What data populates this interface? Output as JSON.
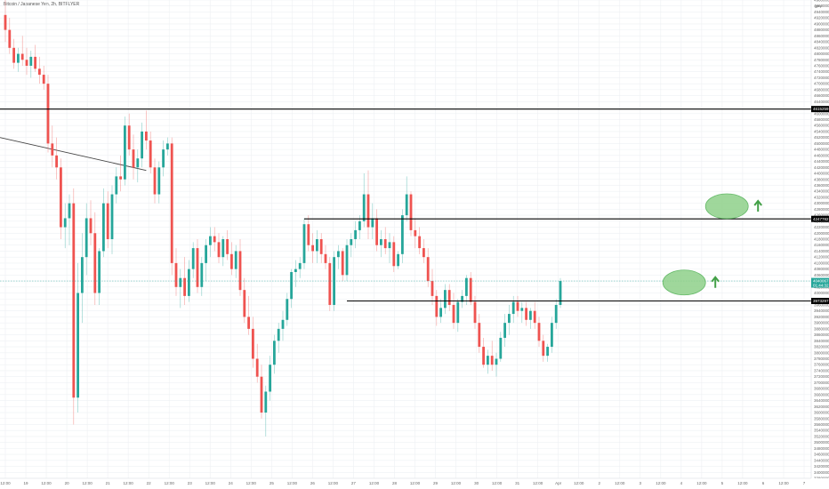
{
  "chart_data": {
    "type": "candlestick",
    "title": "Bitcoin / Japanese Yen, 2h, BITFLYER",
    "currency_label": "JPY",
    "colors": {
      "up": "#26a69a",
      "down": "#ef5350",
      "level_line": "#000000",
      "trendline": "#444444",
      "ellipse_fill": "#8fd18a",
      "ellipse_stroke": "#4caf50",
      "arrow": "#43a047",
      "current_price_tag": "#26a69a",
      "level_tag": "#000000",
      "grid": "#eef0f3"
    },
    "x_axis": {
      "labels": [
        "12:00",
        "19",
        "12:00",
        "20",
        "12:00",
        "21",
        "12:00",
        "22",
        "12:00",
        "23",
        "12:00",
        "24",
        "12:00",
        "25",
        "12:00",
        "26",
        "12:00",
        "27",
        "12:00",
        "28",
        "12:00",
        "29",
        "12:00",
        "30",
        "12:00",
        "31",
        "12:00",
        "Apr",
        "12:00",
        "2",
        "12:00",
        "3",
        "12:00",
        "4",
        "12:00",
        "5",
        "12:00",
        "6",
        "12:00",
        "7"
      ]
    },
    "y_axis": {
      "min": 3380000,
      "max": 4980000,
      "tick_step": 20000,
      "grid": true
    },
    "levels": [
      {
        "name": "upper-resistance",
        "value": 4615259,
        "label": "4615259",
        "start_bar": 0
      },
      {
        "name": "mid-resistance",
        "value": 4247782,
        "label": "4247782",
        "start_bar": 70
      },
      {
        "name": "support",
        "value": 3973297,
        "label": "3973297",
        "start_bar": 80
      }
    ],
    "current_price": {
      "value": 4040067,
      "label": "4040067",
      "countdown": "01:44:32"
    },
    "trendline": {
      "start_bar": 0,
      "start_value": 4520000,
      "end_bar": 33,
      "end_value": 4410000
    },
    "annotations": [
      {
        "name": "target-ellipse-upper",
        "bar": 169,
        "value": 4290000,
        "arrow": "up"
      },
      {
        "name": "target-ellipse-lower",
        "bar": 159,
        "value": 4035000,
        "arrow": "up"
      }
    ],
    "candles": [
      [
        4930000,
        4980000,
        4840000,
        4880000
      ],
      [
        4880000,
        4920000,
        4800000,
        4820000
      ],
      [
        4820000,
        4850000,
        4750000,
        4770000
      ],
      [
        4770000,
        4820000,
        4740000,
        4800000
      ],
      [
        4800000,
        4860000,
        4760000,
        4780000
      ],
      [
        4780000,
        4820000,
        4730000,
        4760000
      ],
      [
        4760000,
        4810000,
        4720000,
        4790000
      ],
      [
        4790000,
        4830000,
        4740000,
        4750000
      ],
      [
        4750000,
        4790000,
        4700000,
        4730000
      ],
      [
        4730000,
        4760000,
        4680000,
        4700000
      ],
      [
        4700000,
        4730000,
        4470000,
        4500000
      ],
      [
        4500000,
        4560000,
        4420000,
        4460000
      ],
      [
        4460000,
        4520000,
        4380000,
        4420000
      ],
      [
        4420000,
        4450000,
        4180000,
        4220000
      ],
      [
        4220000,
        4300000,
        4150000,
        4250000
      ],
      [
        4250000,
        4330000,
        4160000,
        4300000
      ],
      [
        4300000,
        4350000,
        3560000,
        3650000
      ],
      [
        3650000,
        4100000,
        3600000,
        4000000
      ],
      [
        4000000,
        4200000,
        3900000,
        4120000
      ],
      [
        4120000,
        4300000,
        4060000,
        4250000
      ],
      [
        4250000,
        4310000,
        4160000,
        4200000
      ],
      [
        4200000,
        4270000,
        3960000,
        4000000
      ],
      [
        4000000,
        4150000,
        3960000,
        4140000
      ],
      [
        4140000,
        4350000,
        4120000,
        4300000
      ],
      [
        4300000,
        4340000,
        4150000,
        4180000
      ],
      [
        4180000,
        4360000,
        4130000,
        4330000
      ],
      [
        4330000,
        4420000,
        4300000,
        4390000
      ],
      [
        4390000,
        4460000,
        4340000,
        4380000
      ],
      [
        4380000,
        4590000,
        4360000,
        4560000
      ],
      [
        4560000,
        4600000,
        4460000,
        4480000
      ],
      [
        4480000,
        4530000,
        4380000,
        4420000
      ],
      [
        4420000,
        4480000,
        4370000,
        4450000
      ],
      [
        4450000,
        4570000,
        4420000,
        4540000
      ],
      [
        4540000,
        4610000,
        4480000,
        4510000
      ],
      [
        4510000,
        4540000,
        4400000,
        4420000
      ],
      [
        4420000,
        4450000,
        4300000,
        4330000
      ],
      [
        4330000,
        4440000,
        4300000,
        4420000
      ],
      [
        4420000,
        4510000,
        4390000,
        4480000
      ],
      [
        4480000,
        4520000,
        4460000,
        4500000
      ],
      [
        4500000,
        4520000,
        4060000,
        4100000
      ],
      [
        4100000,
        4150000,
        3990000,
        4020000
      ],
      [
        4020000,
        4080000,
        3950000,
        4050000
      ],
      [
        4050000,
        4120000,
        3960000,
        3990000
      ],
      [
        3990000,
        4110000,
        3970000,
        4080000
      ],
      [
        4080000,
        4170000,
        4050000,
        4150000
      ],
      [
        4150000,
        4180000,
        4000000,
        4020000
      ],
      [
        4020000,
        4120000,
        3990000,
        4100000
      ],
      [
        4100000,
        4180000,
        4040000,
        4160000
      ],
      [
        4160000,
        4220000,
        4120000,
        4190000
      ],
      [
        4190000,
        4220000,
        4140000,
        4170000
      ],
      [
        4170000,
        4200000,
        4100000,
        4120000
      ],
      [
        4120000,
        4190000,
        4090000,
        4180000
      ],
      [
        4180000,
        4210000,
        4110000,
        4130000
      ],
      [
        4130000,
        4170000,
        4060000,
        4080000
      ],
      [
        4080000,
        4160000,
        4050000,
        4140000
      ],
      [
        4140000,
        4180000,
        3990000,
        4010000
      ],
      [
        4010000,
        4050000,
        3900000,
        3920000
      ],
      [
        3920000,
        3990000,
        3860000,
        3880000
      ],
      [
        3880000,
        3920000,
        3750000,
        3780000
      ],
      [
        3780000,
        3830000,
        3700000,
        3720000
      ],
      [
        3720000,
        3760000,
        3580000,
        3600000
      ],
      [
        3600000,
        3690000,
        3520000,
        3670000
      ],
      [
        3670000,
        3790000,
        3640000,
        3760000
      ],
      [
        3760000,
        3860000,
        3730000,
        3840000
      ],
      [
        3840000,
        3900000,
        3800000,
        3880000
      ],
      [
        3880000,
        3940000,
        3840000,
        3910000
      ],
      [
        3910000,
        4000000,
        3890000,
        3980000
      ],
      [
        3980000,
        4080000,
        3950000,
        4070000
      ],
      [
        4070000,
        4110000,
        4020000,
        4080000
      ],
      [
        4080000,
        4120000,
        4050000,
        4100000
      ],
      [
        4100000,
        4250000,
        4080000,
        4230000
      ],
      [
        4230000,
        4260000,
        4140000,
        4160000
      ],
      [
        4160000,
        4200000,
        4100000,
        4140000
      ],
      [
        4140000,
        4210000,
        4100000,
        4180000
      ],
      [
        4180000,
        4200000,
        4100000,
        4130000
      ],
      [
        4130000,
        4160000,
        4080000,
        4100000
      ],
      [
        4100000,
        4120000,
        3940000,
        3960000
      ],
      [
        3960000,
        4140000,
        3940000,
        4120000
      ],
      [
        4120000,
        4160000,
        4080000,
        4140000
      ],
      [
        4140000,
        4150000,
        4040000,
        4060000
      ],
      [
        4060000,
        4180000,
        4040000,
        4160000
      ],
      [
        4160000,
        4200000,
        4120000,
        4180000
      ],
      [
        4180000,
        4240000,
        4150000,
        4210000
      ],
      [
        4210000,
        4260000,
        4180000,
        4240000
      ],
      [
        4240000,
        4400000,
        4220000,
        4330000
      ],
      [
        4330000,
        4410000,
        4180000,
        4220000
      ],
      [
        4220000,
        4300000,
        4180000,
        4250000
      ],
      [
        4250000,
        4280000,
        4140000,
        4160000
      ],
      [
        4160000,
        4210000,
        4120000,
        4180000
      ],
      [
        4180000,
        4220000,
        4130000,
        4150000
      ],
      [
        4150000,
        4200000,
        4100000,
        4170000
      ],
      [
        4170000,
        4190000,
        4070000,
        4090000
      ],
      [
        4090000,
        4140000,
        4080000,
        4130000
      ],
      [
        4130000,
        4280000,
        4100000,
        4260000
      ],
      [
        4260000,
        4390000,
        4240000,
        4330000
      ],
      [
        4330000,
        4340000,
        4190000,
        4210000
      ],
      [
        4210000,
        4250000,
        4150000,
        4190000
      ],
      [
        4190000,
        4220000,
        4130000,
        4150000
      ],
      [
        4150000,
        4180000,
        4100000,
        4120000
      ],
      [
        4120000,
        4150000,
        4020000,
        4040000
      ],
      [
        4040000,
        4080000,
        3960000,
        3990000
      ],
      [
        3990000,
        4010000,
        3890000,
        3920000
      ],
      [
        3920000,
        3980000,
        3900000,
        3950000
      ],
      [
        3950000,
        4030000,
        3930000,
        4010000
      ],
      [
        4010000,
        4030000,
        3940000,
        3960000
      ],
      [
        3960000,
        4000000,
        3880000,
        3900000
      ],
      [
        3900000,
        3980000,
        3870000,
        3970000
      ],
      [
        3970000,
        4010000,
        3950000,
        3990000
      ],
      [
        3990000,
        4060000,
        3960000,
        4050000
      ],
      [
        4050000,
        4070000,
        3960000,
        3970000
      ],
      [
        3970000,
        3990000,
        3880000,
        3900000
      ],
      [
        3900000,
        3930000,
        3800000,
        3820000
      ],
      [
        3820000,
        3850000,
        3750000,
        3760000
      ],
      [
        3760000,
        3810000,
        3730000,
        3790000
      ],
      [
        3790000,
        3840000,
        3740000,
        3760000
      ],
      [
        3760000,
        3800000,
        3720000,
        3780000
      ],
      [
        3780000,
        3870000,
        3770000,
        3850000
      ],
      [
        3850000,
        3930000,
        3820000,
        3900000
      ],
      [
        3900000,
        3960000,
        3860000,
        3930000
      ],
      [
        3930000,
        3990000,
        3900000,
        3970000
      ],
      [
        3970000,
        3990000,
        3920000,
        3940000
      ],
      [
        3940000,
        3970000,
        3900000,
        3950000
      ],
      [
        3950000,
        3970000,
        3890000,
        3910000
      ],
      [
        3910000,
        3950000,
        3880000,
        3940000
      ],
      [
        3940000,
        3970000,
        3880000,
        3900000
      ],
      [
        3900000,
        3920000,
        3820000,
        3840000
      ],
      [
        3840000,
        3860000,
        3770000,
        3790000
      ],
      [
        3790000,
        3830000,
        3770000,
        3820000
      ],
      [
        3820000,
        3920000,
        3800000,
        3900000
      ],
      [
        3900000,
        3980000,
        3880000,
        3960000
      ],
      [
        3960000,
        4050000,
        3950000,
        4040000
      ]
    ]
  }
}
